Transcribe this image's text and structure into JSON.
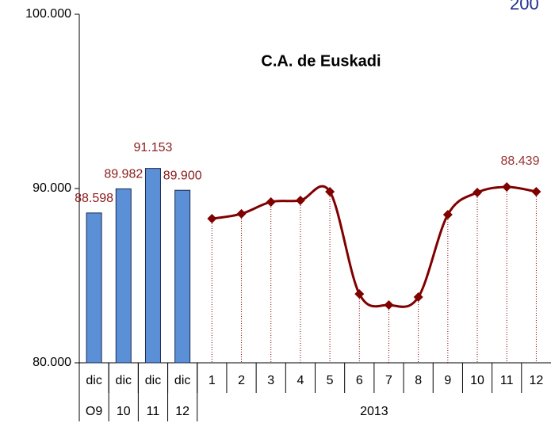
{
  "chart_data": {
    "type": "bar_line",
    "title": "C.A. de Euskadi",
    "corner_text": "200",
    "annotation": "88.439",
    "categories": [
      "dic",
      "dic",
      "dic",
      "dic",
      "1",
      "2",
      "3",
      "4",
      "5",
      "6",
      "7",
      "8",
      "9",
      "10",
      "11",
      "12"
    ],
    "category_groups": [
      {
        "label": "O9",
        "span": 1
      },
      {
        "label": "10",
        "span": 1
      },
      {
        "label": "11",
        "span": 1
      },
      {
        "label": "12",
        "span": 1
      },
      {
        "label": "2013",
        "span": 12
      }
    ],
    "series": [
      {
        "type": "bar",
        "color": "#5b8fd6",
        "values": [
          88598,
          89982,
          91153,
          89900,
          null,
          null,
          null,
          null,
          null,
          null,
          null,
          null,
          null,
          null,
          null,
          null
        ],
        "value_labels": [
          "88.598",
          "89.982",
          "91.153",
          "89.900",
          null,
          null,
          null,
          null,
          null,
          null,
          null,
          null,
          null,
          null,
          null,
          null
        ]
      },
      {
        "type": "line",
        "color": "#800000",
        "values": [
          null,
          null,
          null,
          null,
          88270,
          88550,
          89230,
          89320,
          89820,
          83950,
          83320,
          83770,
          88500,
          89770,
          90090,
          89820
        ]
      }
    ],
    "ylim": [
      80000,
      100000
    ],
    "yticks": [
      {
        "value": 80000,
        "label": "80.000"
      },
      {
        "value": 90000,
        "label": "90.000"
      },
      {
        "value": 100000,
        "label": "100.000"
      }
    ]
  }
}
